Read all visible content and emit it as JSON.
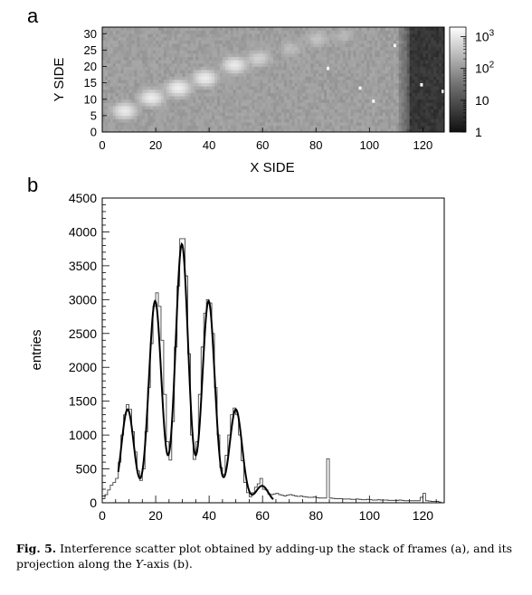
{
  "caption": {
    "label": "Fig. 5.",
    "text_1": "Interference scatter plot obtained by adding-up the stack of frames (a), and its projection along the ",
    "axis_word": "Y",
    "text_2": "-axis (b)."
  },
  "chart_data": [
    {
      "panel_label": "a",
      "type": "heatmap",
      "xlabel": "X SIDE",
      "ylabel": "Y SIDE",
      "xlim": [
        0,
        128
      ],
      "ylim": [
        0,
        32
      ],
      "x_ticks": [
        "0",
        "20",
        "40",
        "60",
        "80",
        "100",
        "120"
      ],
      "y_ticks": [
        "0",
        "5",
        "10",
        "15",
        "20",
        "25",
        "30"
      ],
      "colorbar": {
        "scale": "log",
        "range": [
          1,
          2000
        ],
        "tick_labels": [
          "1",
          "10",
          "10",
          "10"
        ],
        "tick_exponents": [
          "",
          "",
          "2",
          "3"
        ],
        "colormap": "grayscale"
      },
      "bright_blobs": [
        {
          "x": 8,
          "y": 6,
          "peak": 900
        },
        {
          "x": 18,
          "y": 10,
          "peak": 1000
        },
        {
          "x": 28,
          "y": 13,
          "peak": 1100
        },
        {
          "x": 38,
          "y": 16,
          "peak": 1000
        },
        {
          "x": 49,
          "y": 20,
          "peak": 900
        },
        {
          "x": 58,
          "y": 22,
          "peak": 400
        },
        {
          "x": 70,
          "y": 25,
          "peak": 150
        },
        {
          "x": 80,
          "y": 28,
          "peak": 200
        },
        {
          "x": 90,
          "y": 29,
          "peak": 120
        }
      ],
      "hot_pixels": [
        {
          "x": 84,
          "y": 19
        },
        {
          "x": 96,
          "y": 13
        },
        {
          "x": 101,
          "y": 9
        },
        {
          "x": 109,
          "y": 26
        },
        {
          "x": 119,
          "y": 14
        },
        {
          "x": 127,
          "y": 12
        }
      ]
    },
    {
      "panel_label": "b",
      "type": "line",
      "xlabel": "",
      "ylabel": "entries",
      "xlim": [
        0,
        128
      ],
      "ylim": [
        0,
        4500
      ],
      "x_ticks": [
        "0",
        "20",
        "40",
        "60",
        "80",
        "100",
        "120"
      ],
      "y_ticks": [
        "0",
        "500",
        "1000",
        "1500",
        "2000",
        "2500",
        "3000",
        "3500",
        "4000",
        "4500"
      ],
      "fit_peaks": [
        {
          "x": 9.5,
          "amplitude": 1380
        },
        {
          "x": 19.8,
          "amplitude": 2980
        },
        {
          "x": 29.8,
          "amplitude": 3820
        },
        {
          "x": 39.8,
          "amplitude": 2980
        },
        {
          "x": 50,
          "amplitude": 1380
        },
        {
          "x": 59.8,
          "amplitude": 250
        }
      ],
      "histogram_series": {
        "bin_width": 1,
        "x_start": 0,
        "values": [
          60,
          120,
          190,
          260,
          300,
          360,
          600,
          1000,
          1300,
          1450,
          1380,
          1050,
          750,
          470,
          330,
          500,
          1050,
          1700,
          2350,
          2900,
          3100,
          2900,
          2400,
          1600,
          900,
          630,
          1200,
          2300,
          3200,
          3900,
          3900,
          3350,
          2200,
          1000,
          640,
          900,
          1600,
          2300,
          2800,
          3000,
          2950,
          2500,
          1700,
          1000,
          520,
          420,
          700,
          1000,
          1300,
          1400,
          1300,
          1000,
          620,
          300,
          150,
          90,
          150,
          230,
          280,
          360,
          200,
          190,
          130,
          120,
          130,
          140,
          120,
          110,
          100,
          115,
          120,
          110,
          100,
          95,
          100,
          90,
          85,
          80,
          80,
          85,
          75,
          70,
          70,
          70,
          650,
          70,
          65,
          60,
          60,
          60,
          55,
          55,
          55,
          50,
          50,
          55,
          50,
          45,
          45,
          50,
          45,
          40,
          40,
          45,
          40,
          40,
          40,
          35,
          35,
          35,
          35,
          40,
          35,
          30,
          30,
          30,
          30,
          30,
          30,
          80,
          140,
          30,
          25,
          20,
          20,
          20,
          10
        ]
      }
    }
  ]
}
